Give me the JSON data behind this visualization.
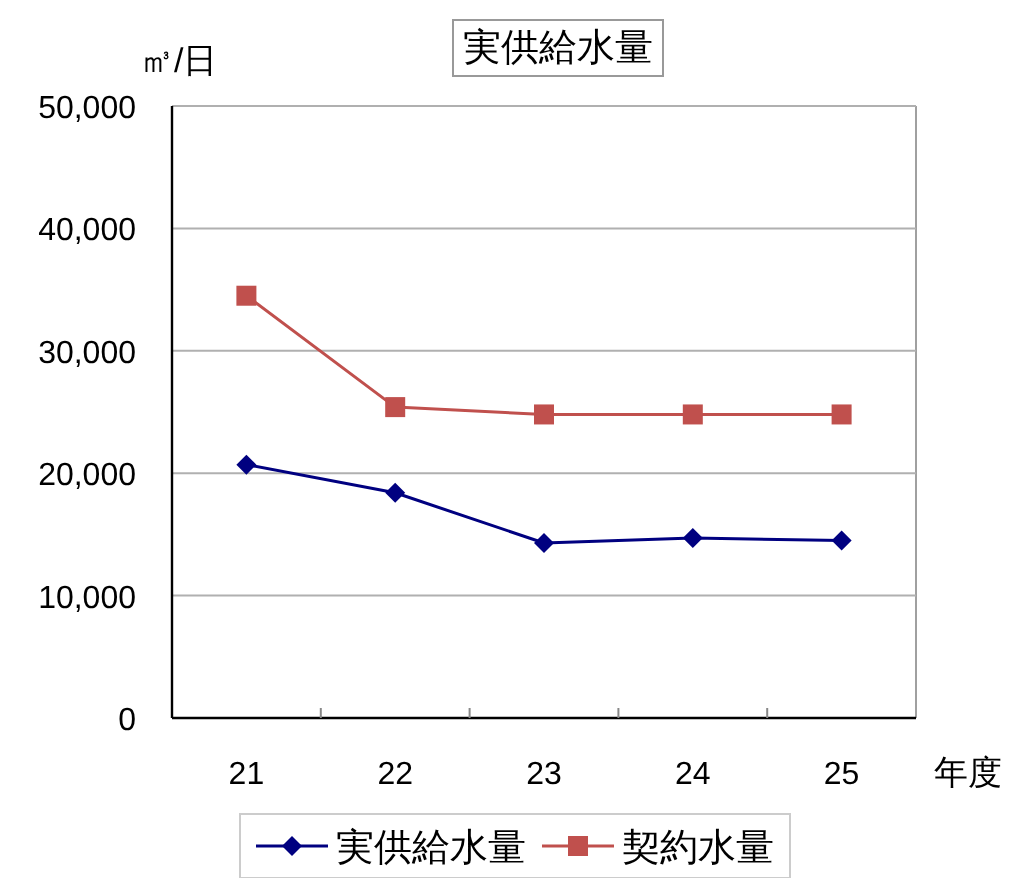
{
  "chart_data": {
    "type": "line",
    "title": "実供給水量",
    "ylabel": "㎥/日",
    "xlabel": "年度",
    "categories": [
      "21",
      "22",
      "23",
      "24",
      "25"
    ],
    "series": [
      {
        "name": "実供給水量",
        "color": "#000080",
        "marker": "diamond",
        "values": [
          20700,
          18400,
          14300,
          14700,
          14500
        ]
      },
      {
        "name": "契約水量",
        "color": "#c0504d",
        "marker": "square",
        "values": [
          34500,
          25400,
          24800,
          24800,
          24800
        ]
      }
    ],
    "ylim": [
      0,
      50000
    ],
    "yticks": [
      {
        "value": 0,
        "label": "0"
      },
      {
        "value": 10000,
        "label": "10,000"
      },
      {
        "value": 20000,
        "label": "20,000"
      },
      {
        "value": 30000,
        "label": "30,000"
      },
      {
        "value": 40000,
        "label": "40,000"
      },
      {
        "value": 50000,
        "label": "50,000"
      }
    ],
    "grid": "y",
    "legend": "bottom"
  }
}
